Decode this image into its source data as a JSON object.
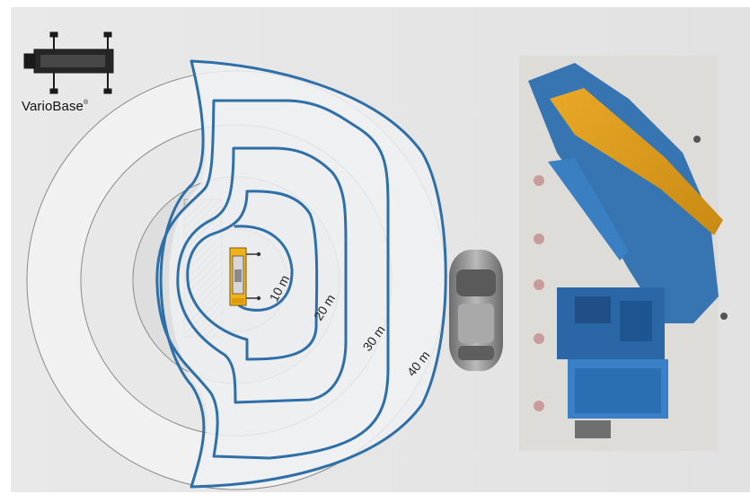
{
  "brand": {
    "name": "VarioBase",
    "mark": "®"
  },
  "radius_labels": [
    "10 m",
    "20 m",
    "30 m",
    "40 m"
  ],
  "icons": {
    "logo": "crane-outrigger-top-view-icon",
    "crane": "crane-top-view-icon",
    "car": "parked-car-icon",
    "building": "building-construction-photo"
  },
  "colors": {
    "envelope_stroke": "#2f6fa8",
    "circle_stroke": "#8a8a8a",
    "zone_fill_outer": "#e6e6e6",
    "zone_fill_inner": "#d7d7d7",
    "crane_yellow": "#f2b21a",
    "building_blue": "#2d6fb0"
  }
}
